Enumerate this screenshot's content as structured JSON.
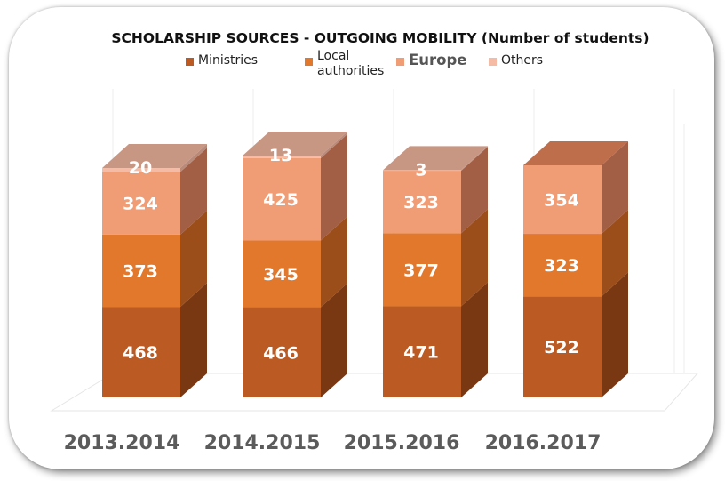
{
  "chart_data": {
    "type": "bar",
    "stacked": true,
    "three_d": true,
    "title": "SCHOLARSHIP SOURCES - OUTGOING MOBILITY  (Number of students)",
    "categories": [
      "2013.2014",
      "2014.2015",
      "2015.2016",
      "2016.2017"
    ],
    "series": [
      {
        "name": "Ministries",
        "values": [
          468,
          466,
          471,
          522
        ],
        "color": "#BB5A22",
        "side": "#7A3812"
      },
      {
        "name": "Local authorities",
        "values": [
          373,
          345,
          377,
          323
        ],
        "color": "#E2782C",
        "side": "#9C4E1A"
      },
      {
        "name": "Europe",
        "values": [
          324,
          425,
          323,
          354
        ],
        "color": "#F09C74",
        "side": "#A35F45"
      },
      {
        "name": "Others",
        "values": [
          20,
          13,
          3,
          0
        ],
        "color": "#F5BBA4",
        "side": "#B88A7A"
      }
    ],
    "data_labels": [
      [
        "468",
        "373",
        "324",
        "20"
      ],
      [
        "466",
        "345",
        "425",
        "13"
      ],
      [
        "471",
        "377",
        "323",
        "3"
      ],
      [
        "522",
        "323",
        "354",
        ""
      ]
    ],
    "grid": true,
    "legend_position": "top"
  },
  "legend": {
    "ministries": "Ministries",
    "local_line1": "Local",
    "local_line2": "authorities",
    "europe": "Europe",
    "others": "Others"
  }
}
